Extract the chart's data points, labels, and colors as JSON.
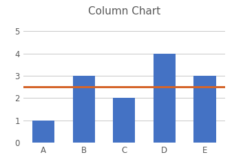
{
  "categories": [
    "A",
    "B",
    "C",
    "D",
    "E"
  ],
  "values": [
    1,
    3,
    2,
    4,
    3
  ],
  "bar_color": "#4472C4",
  "hline_value": 2.5,
  "hline_color": "#D4652A",
  "title": "Column Chart",
  "title_fontsize": 11,
  "title_color": "#595959",
  "ylim": [
    0,
    5.5
  ],
  "yticks": [
    0,
    1,
    2,
    3,
    4,
    5
  ],
  "tick_label_color": "#595959",
  "tick_label_fontsize": 8.5,
  "background_color": "#ffffff",
  "grid_color": "#c8c8c8",
  "bar_width": 0.55,
  "hline_linewidth": 2.2
}
